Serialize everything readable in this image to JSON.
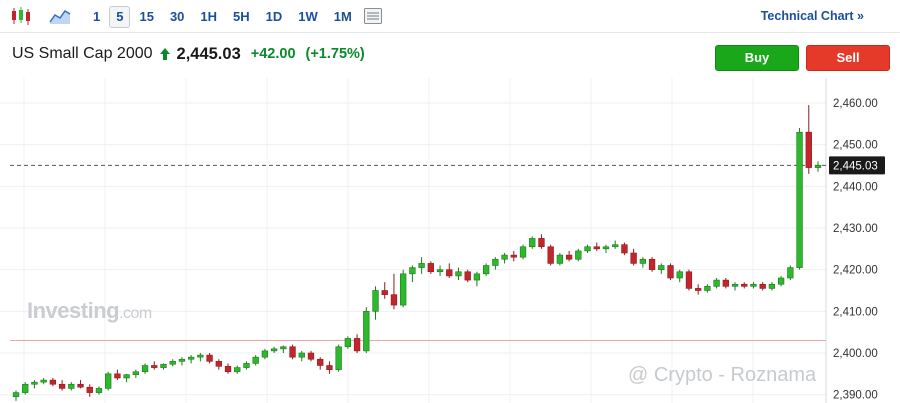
{
  "toolbar": {
    "candle_icon": "candlestick-icon",
    "area_icon": "area-chart-icon",
    "intervals": [
      "1",
      "5",
      "15",
      "30",
      "1H",
      "5H",
      "1D",
      "1W",
      "1M"
    ],
    "active_interval": "5",
    "indicator_icon": "indicators-icon",
    "technical_link": "Technical Chart »"
  },
  "header": {
    "instrument": "US Small Cap 2000",
    "price": "2,445.03",
    "change": "+42.00",
    "change_pct": "(+1.75%)"
  },
  "buttons": {
    "buy": "Buy",
    "sell": "Sell"
  },
  "logo": {
    "main": "Investing",
    "suffix": ".com"
  },
  "watermark": "@ Crypto - Roznama",
  "colors": {
    "up": "#2db82d",
    "down": "#c0262b",
    "buy": "#1aa81a",
    "sell": "#e53a2a",
    "link": "#1b4f9c"
  },
  "chart_data": {
    "type": "candlestick",
    "ylim": [
      2388,
      2466
    ],
    "yticks": [
      "2,390.00",
      "2,400.00",
      "2,410.00",
      "2,420.00",
      "2,430.00",
      "2,440.00",
      "2,450.00",
      "2,460.00"
    ],
    "ytick_values": [
      2390,
      2400,
      2410,
      2420,
      2430,
      2440,
      2450,
      2460
    ],
    "current_price": 2445.03,
    "current_label": "2,445.03",
    "previous_close": 2403,
    "candles": [
      [
        2389.5,
        2391.0,
        2388.5,
        2390.5
      ],
      [
        2390.5,
        2393.0,
        2390.0,
        2392.5
      ],
      [
        2392.5,
        2393.5,
        2391.5,
        2393.0
      ],
      [
        2393.0,
        2394.0,
        2392.5,
        2393.5
      ],
      [
        2393.5,
        2394.0,
        2392.0,
        2392.5
      ],
      [
        2392.5,
        2393.5,
        2391.0,
        2391.5
      ],
      [
        2391.5,
        2393.0,
        2391.0,
        2392.5
      ],
      [
        2392.5,
        2393.5,
        2391.5,
        2391.8
      ],
      [
        2391.8,
        2392.5,
        2389.5,
        2390.5
      ],
      [
        2390.5,
        2392.0,
        2390.0,
        2391.5
      ],
      [
        2391.5,
        2395.5,
        2391.0,
        2395.0
      ],
      [
        2395.0,
        2396.0,
        2393.5,
        2394.0
      ],
      [
        2394.0,
        2395.0,
        2393.0,
        2394.8
      ],
      [
        2394.8,
        2396.0,
        2394.0,
        2395.5
      ],
      [
        2395.5,
        2397.5,
        2395.0,
        2397.0
      ],
      [
        2397.0,
        2398.0,
        2396.0,
        2396.5
      ],
      [
        2396.5,
        2397.5,
        2396.0,
        2397.3
      ],
      [
        2397.3,
        2398.5,
        2396.8,
        2398.0
      ],
      [
        2398.0,
        2399.0,
        2397.0,
        2398.5
      ],
      [
        2398.5,
        2399.5,
        2397.5,
        2399.0
      ],
      [
        2399.0,
        2400.0,
        2398.0,
        2399.5
      ],
      [
        2399.5,
        2400.0,
        2397.5,
        2398.0
      ],
      [
        2398.0,
        2398.5,
        2396.0,
        2396.8
      ],
      [
        2396.8,
        2397.5,
        2395.0,
        2395.5
      ],
      [
        2395.5,
        2397.0,
        2395.0,
        2396.5
      ],
      [
        2396.5,
        2398.0,
        2396.0,
        2397.5
      ],
      [
        2397.5,
        2399.5,
        2397.0,
        2399.0
      ],
      [
        2399.0,
        2401.0,
        2398.5,
        2400.5
      ],
      [
        2400.5,
        2401.5,
        2400.0,
        2401.0
      ],
      [
        2401.0,
        2401.8,
        2400.0,
        2401.5
      ],
      [
        2401.5,
        2402.0,
        2398.5,
        2399.0
      ],
      [
        2399.0,
        2400.5,
        2398.0,
        2400.0
      ],
      [
        2400.0,
        2400.5,
        2398.0,
        2398.5
      ],
      [
        2398.5,
        2399.0,
        2396.0,
        2397.0
      ],
      [
        2397.0,
        2398.0,
        2395.0,
        2396.0
      ],
      [
        2396.0,
        2402.0,
        2395.5,
        2401.5
      ],
      [
        2401.5,
        2404.0,
        2401.0,
        2403.5
      ],
      [
        2403.5,
        2404.5,
        2400.0,
        2400.5
      ],
      [
        2400.5,
        2411.0,
        2400.0,
        2410.0
      ],
      [
        2410.0,
        2416.0,
        2408.0,
        2415.0
      ],
      [
        2415.0,
        2417.0,
        2413.0,
        2414.0
      ],
      [
        2414.0,
        2419.0,
        2410.5,
        2411.5
      ],
      [
        2411.5,
        2420.0,
        2411.0,
        2419.0
      ],
      [
        2419.0,
        2421.0,
        2417.0,
        2420.5
      ],
      [
        2420.5,
        2423.0,
        2419.0,
        2421.5
      ],
      [
        2421.5,
        2422.0,
        2419.0,
        2419.5
      ],
      [
        2419.5,
        2421.0,
        2418.5,
        2420.0
      ],
      [
        2420.0,
        2421.5,
        2418.0,
        2418.5
      ],
      [
        2418.5,
        2420.5,
        2417.5,
        2419.5
      ],
      [
        2419.5,
        2420.0,
        2417.0,
        2417.5
      ],
      [
        2417.5,
        2419.5,
        2416.0,
        2419.0
      ],
      [
        2419.0,
        2421.5,
        2418.5,
        2421.0
      ],
      [
        2421.0,
        2423.0,
        2420.0,
        2422.5
      ],
      [
        2422.5,
        2424.0,
        2421.5,
        2423.5
      ],
      [
        2423.5,
        2424.5,
        2422.0,
        2423.0
      ],
      [
        2423.0,
        2426.0,
        2422.5,
        2425.5
      ],
      [
        2425.5,
        2428.0,
        2425.0,
        2427.5
      ],
      [
        2427.5,
        2428.5,
        2425.0,
        2425.5
      ],
      [
        2425.5,
        2426.0,
        2421.0,
        2421.5
      ],
      [
        2421.5,
        2424.0,
        2421.0,
        2423.5
      ],
      [
        2423.5,
        2424.5,
        2422.0,
        2422.5
      ],
      [
        2422.5,
        2425.0,
        2422.0,
        2424.5
      ],
      [
        2424.5,
        2426.0,
        2424.0,
        2425.5
      ],
      [
        2425.5,
        2426.5,
        2424.5,
        2425.0
      ],
      [
        2425.0,
        2426.0,
        2424.0,
        2425.5
      ],
      [
        2425.5,
        2427.0,
        2425.0,
        2426.0
      ],
      [
        2426.0,
        2426.5,
        2423.5,
        2424.0
      ],
      [
        2424.0,
        2425.0,
        2421.0,
        2421.5
      ],
      [
        2421.5,
        2423.0,
        2420.5,
        2422.5
      ],
      [
        2422.5,
        2423.0,
        2419.5,
        2420.0
      ],
      [
        2420.0,
        2421.5,
        2419.0,
        2421.0
      ],
      [
        2421.0,
        2421.5,
        2417.5,
        2418.0
      ],
      [
        2418.0,
        2420.0,
        2417.0,
        2419.5
      ],
      [
        2419.5,
        2420.0,
        2415.0,
        2415.5
      ],
      [
        2415.5,
        2416.5,
        2414.0,
        2415.0
      ],
      [
        2415.0,
        2416.5,
        2414.5,
        2416.0
      ],
      [
        2416.0,
        2418.0,
        2415.5,
        2417.5
      ],
      [
        2417.5,
        2418.0,
        2415.5,
        2416.0
      ],
      [
        2416.0,
        2417.0,
        2415.0,
        2416.5
      ],
      [
        2416.5,
        2417.0,
        2415.5,
        2416.0
      ],
      [
        2416.0,
        2417.0,
        2415.5,
        2416.5
      ],
      [
        2416.5,
        2417.0,
        2415.0,
        2415.5
      ],
      [
        2415.5,
        2417.0,
        2415.0,
        2416.5
      ],
      [
        2416.5,
        2418.5,
        2416.0,
        2418.0
      ],
      [
        2418.0,
        2421.0,
        2417.5,
        2420.5
      ],
      [
        2420.5,
        2454.0,
        2420.0,
        2453.0
      ],
      [
        2453.0,
        2459.5,
        2443.0,
        2444.5
      ],
      [
        2444.5,
        2446.0,
        2443.5,
        2445.03
      ]
    ]
  }
}
